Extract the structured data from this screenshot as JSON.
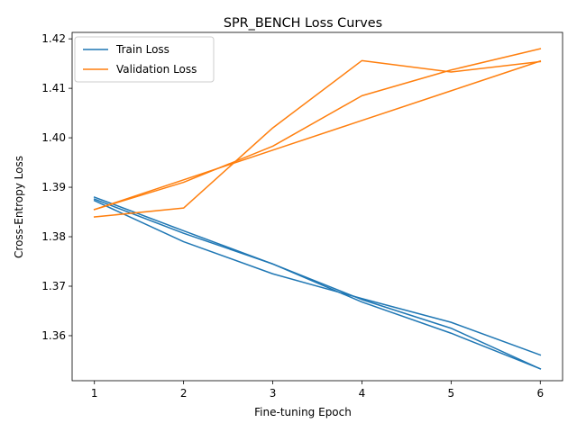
{
  "chart_data": {
    "type": "line",
    "title": "SPR_BENCH Loss Curves",
    "xlabel": "Fine-tuning Epoch",
    "ylabel": "Cross-Entropy Loss",
    "xlim": [
      0.75,
      6.25
    ],
    "ylim": [
      1.3509,
      1.4213
    ],
    "xticks": [
      1,
      2,
      3,
      4,
      5,
      6
    ],
    "yticks": [
      1.36,
      1.37,
      1.38,
      1.39,
      1.4,
      1.41,
      1.42
    ],
    "ytick_labels": [
      "1.36",
      "1.37",
      "1.38",
      "1.39",
      "1.40",
      "1.41",
      "1.42"
    ],
    "grid": false,
    "legend_position": "top-left",
    "legend": [
      {
        "label": "Train Loss",
        "color": "#1f77b4"
      },
      {
        "label": "Validation Loss",
        "color": "#ff7f0e"
      }
    ],
    "series": [
      {
        "color": "#1f77b4",
        "x": [
          1,
          2,
          3,
          4,
          5,
          6
        ],
        "y": [
          1.388,
          1.3812,
          1.3745,
          1.3668,
          1.3605,
          1.3533
        ]
      },
      {
        "color": "#1f77b4",
        "x": [
          1,
          2,
          3,
          4,
          5,
          6
        ],
        "y": [
          1.3876,
          1.3807,
          1.3745,
          1.3673,
          1.3615,
          1.3533
        ]
      },
      {
        "color": "#1f77b4",
        "x": [
          1,
          2,
          3,
          4,
          5,
          6
        ],
        "y": [
          1.3873,
          1.379,
          1.3725,
          1.3675,
          1.3627,
          1.3561
        ]
      },
      {
        "color": "#ff7f0e",
        "x": [
          1,
          2,
          3,
          4,
          5,
          6
        ],
        "y": [
          1.384,
          1.3858,
          1.402,
          1.4156,
          1.4133,
          1.4154
        ]
      },
      {
        "color": "#ff7f0e",
        "x": [
          1,
          2,
          3,
          4,
          5,
          6
        ],
        "y": [
          1.3855,
          1.391,
          1.3983,
          1.4085,
          1.4137,
          1.418
        ]
      },
      {
        "color": "#ff7f0e",
        "x": [
          1,
          2,
          3,
          4,
          5,
          6
        ],
        "y": [
          1.3855,
          1.3915,
          1.3975,
          1.4035,
          1.4095,
          1.4155
        ]
      }
    ]
  }
}
